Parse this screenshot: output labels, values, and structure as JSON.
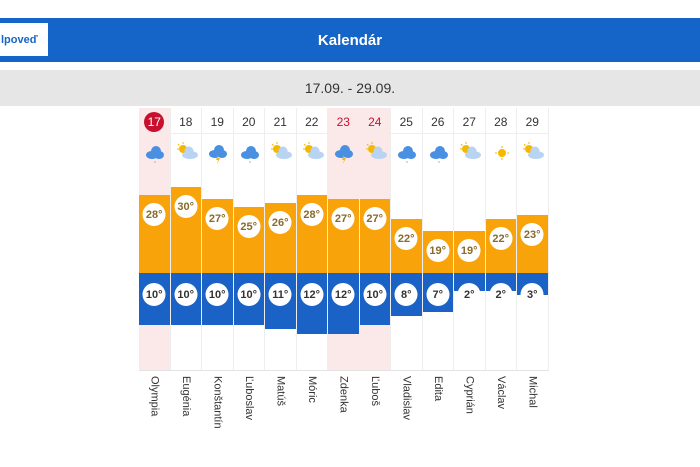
{
  "header": {
    "title": "Kalendár",
    "back_button": "lpoveď"
  },
  "range": "17.09. - 29.09.",
  "colors": {
    "header": "#1565c8",
    "high": "#f9a30a",
    "low": "#1a62c6",
    "weekend": "#fbe9ea",
    "today": "#c8102e"
  },
  "days": [
    {
      "day": "17",
      "icon": "cloud-rain-icon",
      "high": "28°",
      "low": "10°",
      "hi": 28,
      "lo": 10,
      "name": "Olympia",
      "weekend": false,
      "today": true
    },
    {
      "day": "18",
      "icon": "partly-cloudy-icon",
      "high": "30°",
      "low": "10°",
      "hi": 30,
      "lo": 10,
      "name": "Eugénia"
    },
    {
      "day": "19",
      "icon": "thunderstorm-icon",
      "high": "27°",
      "low": "10°",
      "hi": 27,
      "lo": 10,
      "name": "Konštantín"
    },
    {
      "day": "20",
      "icon": "cloud-rain-icon",
      "high": "25°",
      "low": "10°",
      "hi": 25,
      "lo": 10,
      "name": "Ľuboslav"
    },
    {
      "day": "21",
      "icon": "partly-cloudy-icon",
      "high": "26°",
      "low": "11°",
      "hi": 26,
      "lo": 11,
      "name": "Matúš"
    },
    {
      "day": "22",
      "icon": "partly-cloudy-icon",
      "high": "28°",
      "low": "12°",
      "hi": 28,
      "lo": 12,
      "name": "Móric"
    },
    {
      "day": "23",
      "icon": "thunderstorm-icon",
      "high": "27°",
      "low": "12°",
      "hi": 27,
      "lo": 12,
      "name": "Zdenka",
      "weekend": true
    },
    {
      "day": "24",
      "icon": "partly-cloudy-icon",
      "high": "27°",
      "low": "10°",
      "hi": 27,
      "lo": 10,
      "name": "Ľuboš",
      "weekend": true
    },
    {
      "day": "25",
      "icon": "cloud-rain-icon",
      "high": "22°",
      "low": "8°",
      "hi": 22,
      "lo": 8,
      "name": "Vladislav"
    },
    {
      "day": "26",
      "icon": "cloud-rain-icon",
      "high": "19°",
      "low": "7°",
      "hi": 19,
      "lo": 7,
      "name": "Edita"
    },
    {
      "day": "27",
      "icon": "partly-cloudy-icon",
      "high": "19°",
      "low": "2°",
      "hi": 19,
      "lo": 2,
      "name": "Cyprián"
    },
    {
      "day": "28",
      "icon": "sun-icon",
      "high": "22°",
      "low": "2°",
      "hi": 22,
      "lo": 2,
      "name": "Václav"
    },
    {
      "day": "29",
      "icon": "partly-cloudy-icon",
      "high": "23°",
      "low": "3°",
      "hi": 23,
      "lo": 3,
      "name": "Michal"
    }
  ]
}
